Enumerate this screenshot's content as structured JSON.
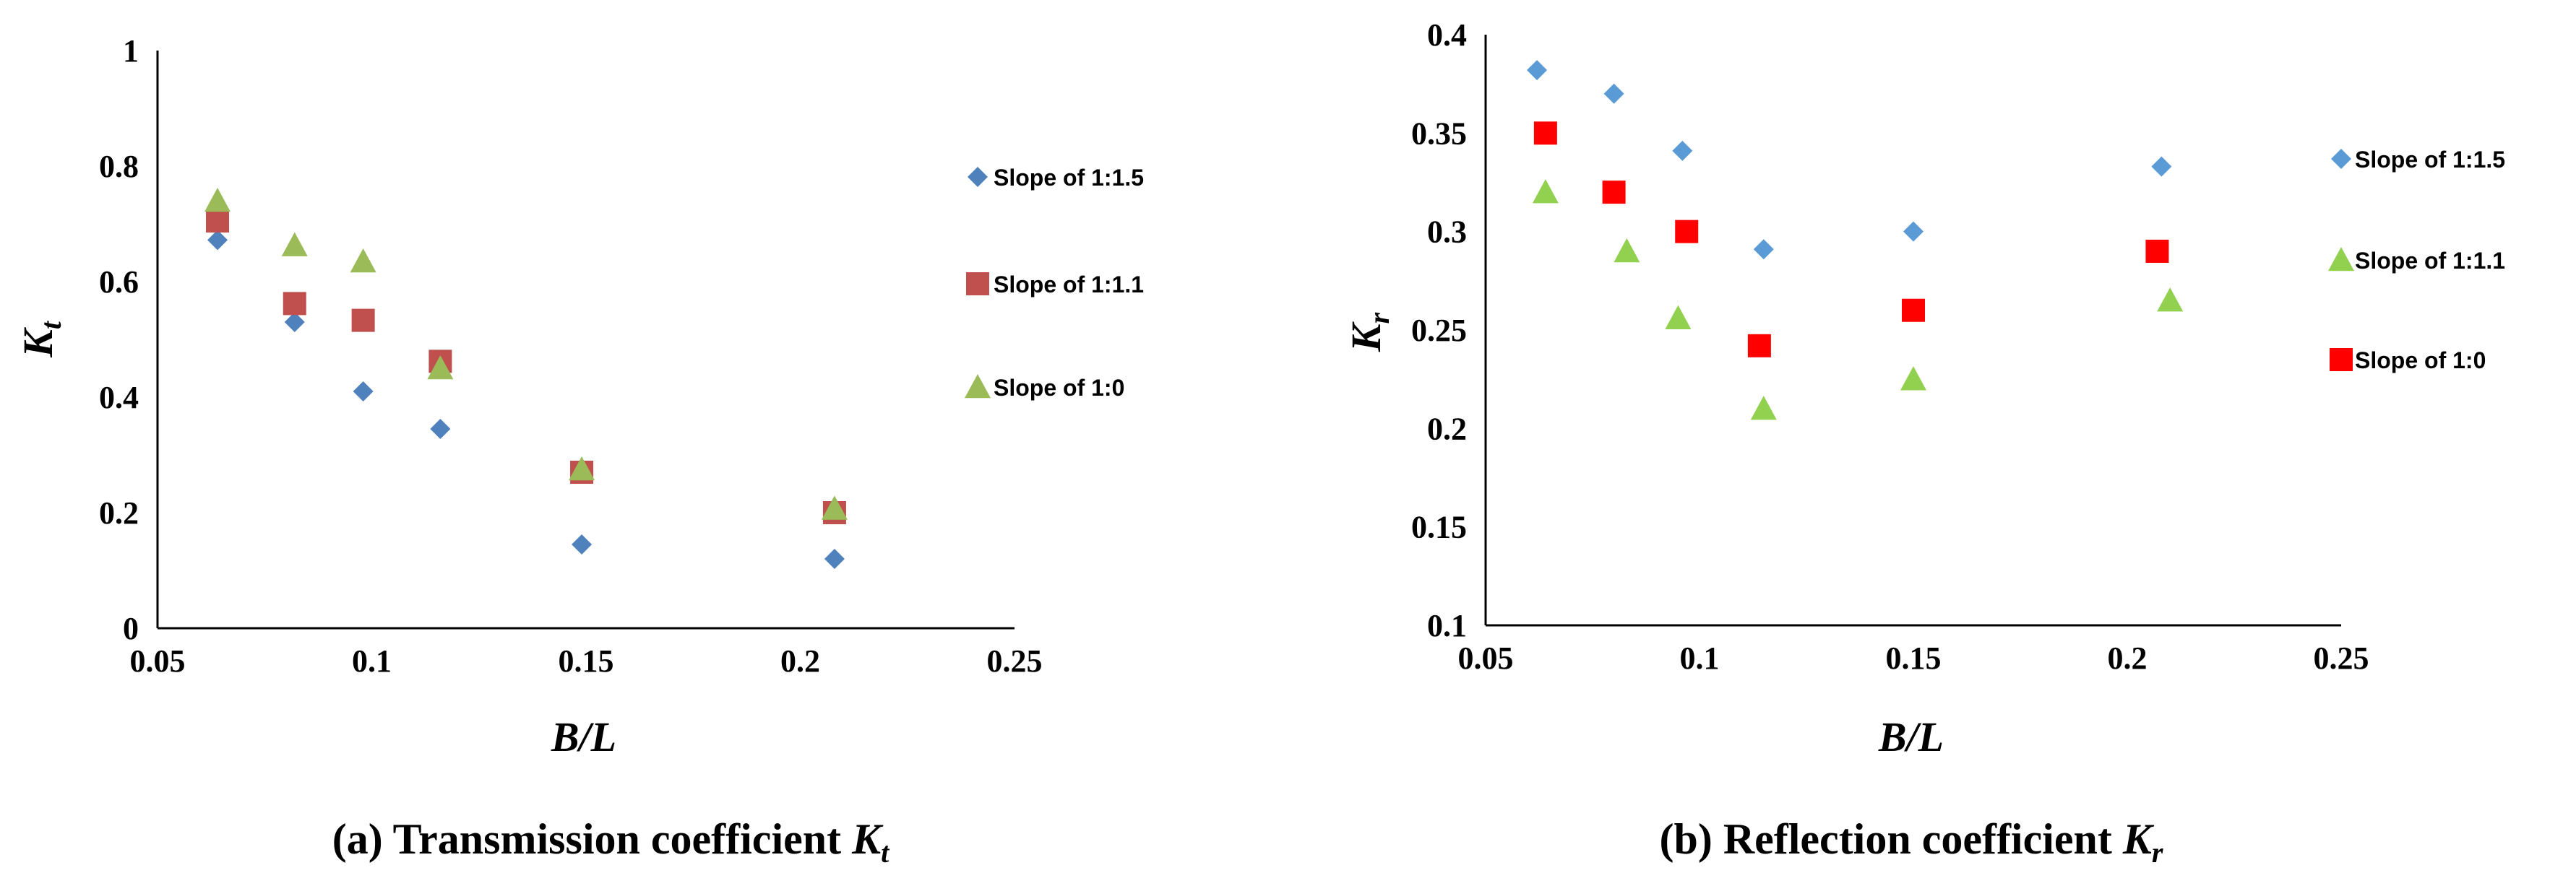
{
  "colors": {
    "blue": "#4f81bd",
    "red_brown": "#c0504d",
    "green": "#9bbb59",
    "red": "#ff0000",
    "light_blue": "#5b9bd5",
    "light_green": "#92d050"
  },
  "chart_data": [
    {
      "type": "scatter",
      "id": "a",
      "caption": {
        "prefix": "(a) Transmission coefficient ",
        "symbol": "K",
        "subscript": "t"
      },
      "xlabel": "B/L",
      "ylabel": {
        "symbol": "K",
        "subscript": "t"
      },
      "xlim": [
        0.05,
        0.25
      ],
      "ylim": [
        0,
        1
      ],
      "xticks": [
        "0.05",
        "0.1",
        "0.15",
        "0.2",
        "0.25"
      ],
      "yticks": [
        "0",
        "0.2",
        "0.4",
        "0.6",
        "0.8",
        "1"
      ],
      "xtick_values": [
        0.05,
        0.1,
        0.15,
        0.2,
        0.25
      ],
      "ytick_values": [
        0,
        0.2,
        0.4,
        0.6,
        0.8,
        1
      ],
      "legend_position": "right",
      "series": [
        {
          "name": "Slope of 1:1.5",
          "marker": "diamond",
          "color": "#4f81bd",
          "x": [
            0.064,
            0.082,
            0.098,
            0.116,
            0.149,
            0.208
          ],
          "y": [
            0.672,
            0.53,
            0.41,
            0.345,
            0.145,
            0.12
          ]
        },
        {
          "name": "Slope of 1:1.1",
          "marker": "square",
          "color": "#c0504d",
          "x": [
            0.064,
            0.082,
            0.098,
            0.116,
            0.149,
            0.208
          ],
          "y": [
            0.705,
            0.562,
            0.533,
            0.462,
            0.27,
            0.2
          ]
        },
        {
          "name": "Slope of 1:0",
          "marker": "triangle",
          "color": "#9bbb59",
          "x": [
            0.064,
            0.082,
            0.098,
            0.116,
            0.149,
            0.208
          ],
          "y": [
            0.74,
            0.663,
            0.635,
            0.45,
            0.275,
            0.207
          ]
        }
      ]
    },
    {
      "type": "scatter",
      "id": "b",
      "caption": {
        "prefix": "(b) Reflection coefficient ",
        "symbol": "K",
        "subscript": "r"
      },
      "xlabel": "B/L",
      "ylabel": {
        "symbol": "K",
        "subscript": "r"
      },
      "xlim": [
        0.05,
        0.25
      ],
      "ylim": [
        0.1,
        0.4
      ],
      "xticks": [
        "0.05",
        "0.1",
        "0.15",
        "0.2",
        "0.25"
      ],
      "yticks": [
        "0.1",
        "0.15",
        "0.2",
        "0.25",
        "0.3",
        "0.35",
        "0.4"
      ],
      "xtick_values": [
        0.05,
        0.1,
        0.15,
        0.2,
        0.25
      ],
      "ytick_values": [
        0.1,
        0.15,
        0.2,
        0.25,
        0.3,
        0.35,
        0.4
      ],
      "legend_position": "right",
      "series": [
        {
          "name": "Slope of 1:1.5",
          "marker": "diamond",
          "color": "#5b9bd5",
          "x": [
            0.062,
            0.08,
            0.096,
            0.115,
            0.15,
            0.208
          ],
          "y": [
            0.382,
            0.37,
            0.341,
            0.291,
            0.3,
            0.333
          ]
        },
        {
          "name": "Slope of 1:1.1",
          "marker": "triangle",
          "color": "#92d050",
          "x": [
            0.064,
            0.083,
            0.095,
            0.115,
            0.15,
            0.21
          ],
          "y": [
            0.32,
            0.29,
            0.256,
            0.21,
            0.225,
            0.265
          ]
        },
        {
          "name": "Slope of 1:0",
          "marker": "square",
          "color": "#ff0000",
          "x": [
            0.064,
            0.08,
            0.097,
            0.114,
            0.15,
            0.207
          ],
          "y": [
            0.35,
            0.32,
            0.3,
            0.242,
            0.26,
            0.29
          ]
        }
      ]
    }
  ]
}
